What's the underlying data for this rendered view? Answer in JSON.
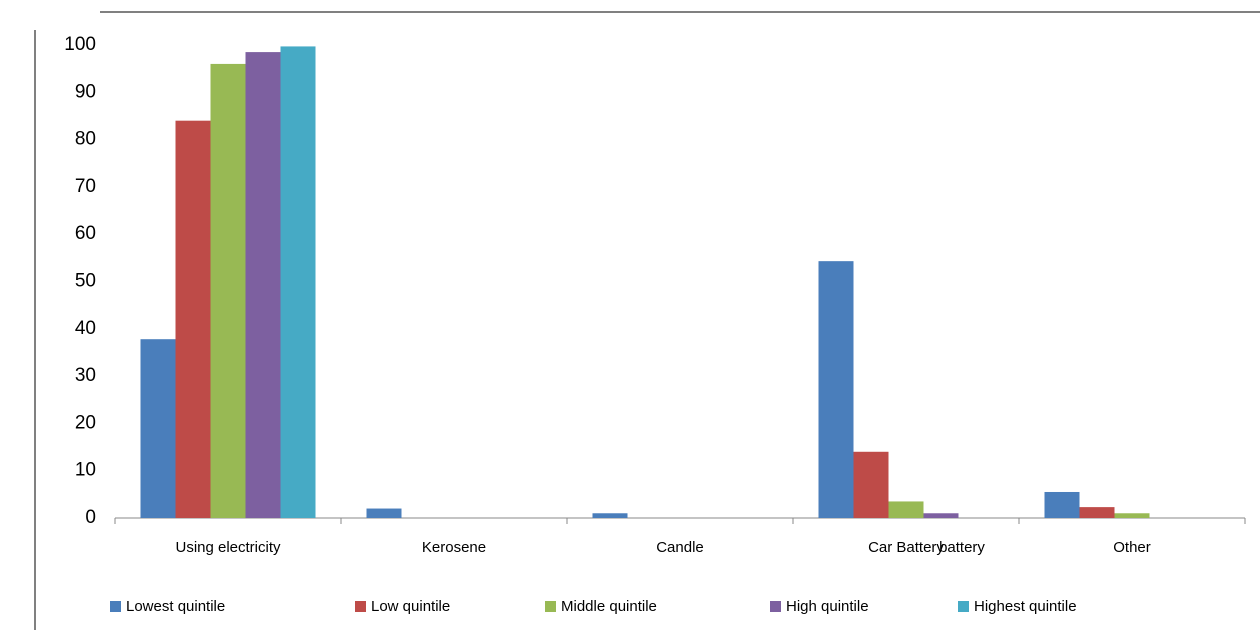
{
  "chart_data": {
    "type": "bar",
    "categories": [
      "Using electricity",
      "Kerosene",
      "Candle",
      "Car Battery",
      "Other"
    ],
    "series": [
      {
        "name": "Lowest quintile",
        "color": "#4a7ebb",
        "values": [
          37.8,
          2,
          1,
          54.3,
          5.5
        ]
      },
      {
        "name": "Low quintile",
        "color": "#be4b48",
        "values": [
          84,
          0,
          0,
          14,
          2.3
        ]
      },
      {
        "name": "Middle quintile",
        "color": "#98b954",
        "values": [
          96,
          0,
          0,
          3.5,
          1
        ]
      },
      {
        "name": "High quintile",
        "color": "#7d60a0",
        "values": [
          98.5,
          0,
          0,
          1,
          0
        ]
      },
      {
        "name": "Highest quintile",
        "color": "#46aac5",
        "values": [
          99.7,
          0,
          0,
          0,
          0
        ]
      }
    ],
    "annotations": [
      "battery"
    ],
    "ylim": [
      0,
      100
    ],
    "yticks": [
      0,
      10,
      20,
      30,
      40,
      50,
      60,
      70,
      80,
      90,
      100
    ],
    "grid": false
  }
}
